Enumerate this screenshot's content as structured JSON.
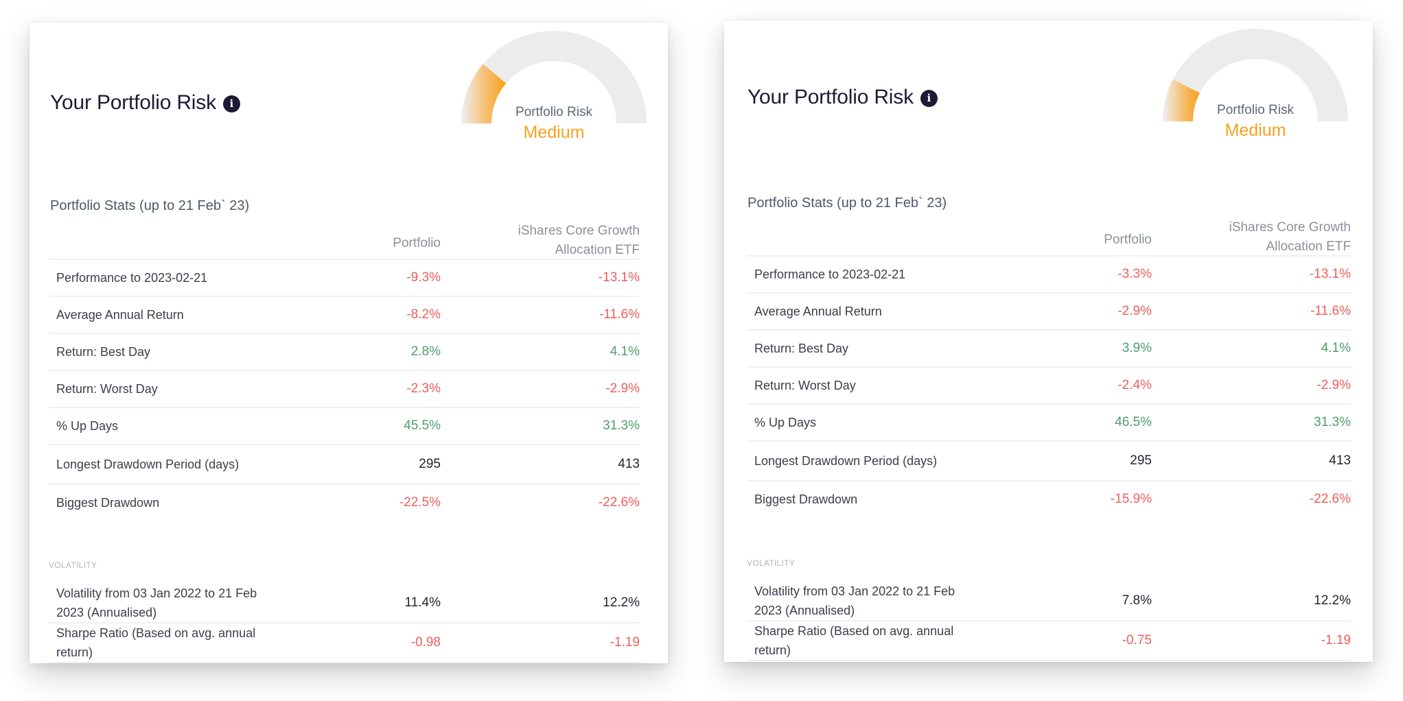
{
  "colors": {
    "negative": "#ef5d5d",
    "positive": "#4f9c6c",
    "accent_orange": "#f6a21d",
    "gauge_track": "#ececec",
    "title": "#1c1b33"
  },
  "cards": [
    {
      "title": "Your Portfolio Risk",
      "info_icon": "info-icon",
      "gauge": {
        "label": "Portfolio Risk",
        "value": "Medium",
        "fill_angle_deg": 40
      },
      "stats_title": "Portfolio Stats (up to 21 Feb` 23)",
      "columns": {
        "portfolio": "Portfolio",
        "benchmark_line1": "iShares Core Growth",
        "benchmark_line2": "Allocation ETF"
      },
      "rows": [
        {
          "label": "Performance to 2023-02-21",
          "portfolio": "-9.3%",
          "benchmark": "-13.1%"
        },
        {
          "label": "Average Annual Return",
          "portfolio": "-8.2%",
          "benchmark": "-11.6%"
        },
        {
          "label": "Return: Best Day",
          "portfolio": "2.8%",
          "benchmark": "4.1%"
        },
        {
          "label": "Return: Worst Day",
          "portfolio": "-2.3%",
          "benchmark": "-2.9%"
        },
        {
          "label": "% Up Days",
          "portfolio": "45.5%",
          "benchmark": "31.3%"
        },
        {
          "label": "Longest Drawdown Period (days)",
          "portfolio": "295",
          "benchmark": "413"
        },
        {
          "label": "Biggest Drawdown",
          "portfolio": "-22.5%",
          "benchmark": "-22.6%"
        }
      ],
      "volatility_section": "VOLATILITY",
      "volatility_rows": [
        {
          "label": "Volatility from 03 Jan 2022 to 21 Feb 2023 (Annualised)",
          "portfolio": "11.4%",
          "benchmark": "12.2%"
        },
        {
          "label": "Sharpe Ratio (Based on avg. annual return)",
          "portfolio": "-0.98",
          "benchmark": "-1.19"
        }
      ]
    },
    {
      "title": "Your Portfolio Risk",
      "info_icon": "info-icon",
      "gauge": {
        "label": "Portfolio Risk",
        "value": "Medium",
        "fill_angle_deg": 27
      },
      "stats_title": "Portfolio Stats (up to 21 Feb` 23)",
      "columns": {
        "portfolio": "Portfolio",
        "benchmark_line1": "iShares Core Growth",
        "benchmark_line2": "Allocation ETF"
      },
      "rows": [
        {
          "label": "Performance to 2023-02-21",
          "portfolio": "-3.3%",
          "benchmark": "-13.1%"
        },
        {
          "label": "Average Annual Return",
          "portfolio": "-2.9%",
          "benchmark": "-11.6%"
        },
        {
          "label": "Return: Best Day",
          "portfolio": "3.9%",
          "benchmark": "4.1%"
        },
        {
          "label": "Return: Worst Day",
          "portfolio": "-2.4%",
          "benchmark": "-2.9%"
        },
        {
          "label": "% Up Days",
          "portfolio": "46.5%",
          "benchmark": "31.3%"
        },
        {
          "label": "Longest Drawdown Period (days)",
          "portfolio": "295",
          "benchmark": "413"
        },
        {
          "label": "Biggest Drawdown",
          "portfolio": "-15.9%",
          "benchmark": "-22.6%"
        }
      ],
      "volatility_section": "VOLATILITY",
      "volatility_rows": [
        {
          "label": "Volatility from 03 Jan 2022 to 21 Feb 2023 (Annualised)",
          "portfolio": "7.8%",
          "benchmark": "12.2%"
        },
        {
          "label": "Sharpe Ratio (Based on avg. annual return)",
          "portfolio": "-0.75",
          "benchmark": "-1.19"
        }
      ]
    }
  ]
}
